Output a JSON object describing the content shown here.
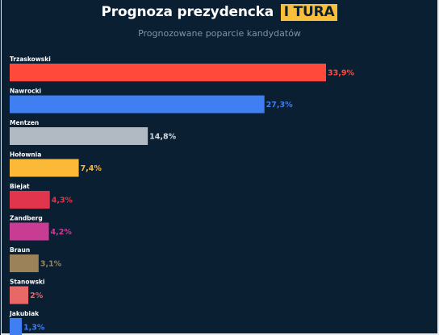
{
  "header": {
    "title": "Prognoza prezydencka",
    "title_highlight": "I TURA",
    "subtitle": "Prognozowane poparcie kandydatów"
  },
  "chart_data": {
    "type": "bar",
    "orientation": "horizontal",
    "categories": [
      "Trzaskowski",
      "Nawrocki",
      "Mentzen",
      "Hołownia",
      "Biejat",
      "Zandberg",
      "Braun",
      "Stanowski",
      "Jakubiak"
    ],
    "values": [
      33.9,
      27.3,
      14.8,
      7.4,
      4.3,
      4.2,
      3.1,
      2,
      1.3
    ],
    "value_labels": [
      "33,9%",
      "27,3%",
      "14,8%",
      "7,4%",
      "4,3%",
      "4,2%",
      "3,1%",
      "2%",
      "1,3%"
    ],
    "colors": [
      "#ff4a3b",
      "#3f7ff1",
      "#b1bac3",
      "#fbb937",
      "#e1344d",
      "#c93c94",
      "#9c8258",
      "#e86868",
      "#3f7ff1"
    ],
    "label_colors": [
      "#ff4a3b",
      "#3f7ff1",
      "#d3d9df",
      "#fbb937",
      "#e1344d",
      "#c93c94",
      "#9c8258",
      "#e86868",
      "#3f7ff1"
    ],
    "xlim": [
      0,
      33.9
    ],
    "title": "Prognoza prezydencka I TURA",
    "subtitle": "Prognozowane poparcie kandydatów",
    "xlabel": "",
    "ylabel": "",
    "grid": false,
    "legend": "none"
  }
}
